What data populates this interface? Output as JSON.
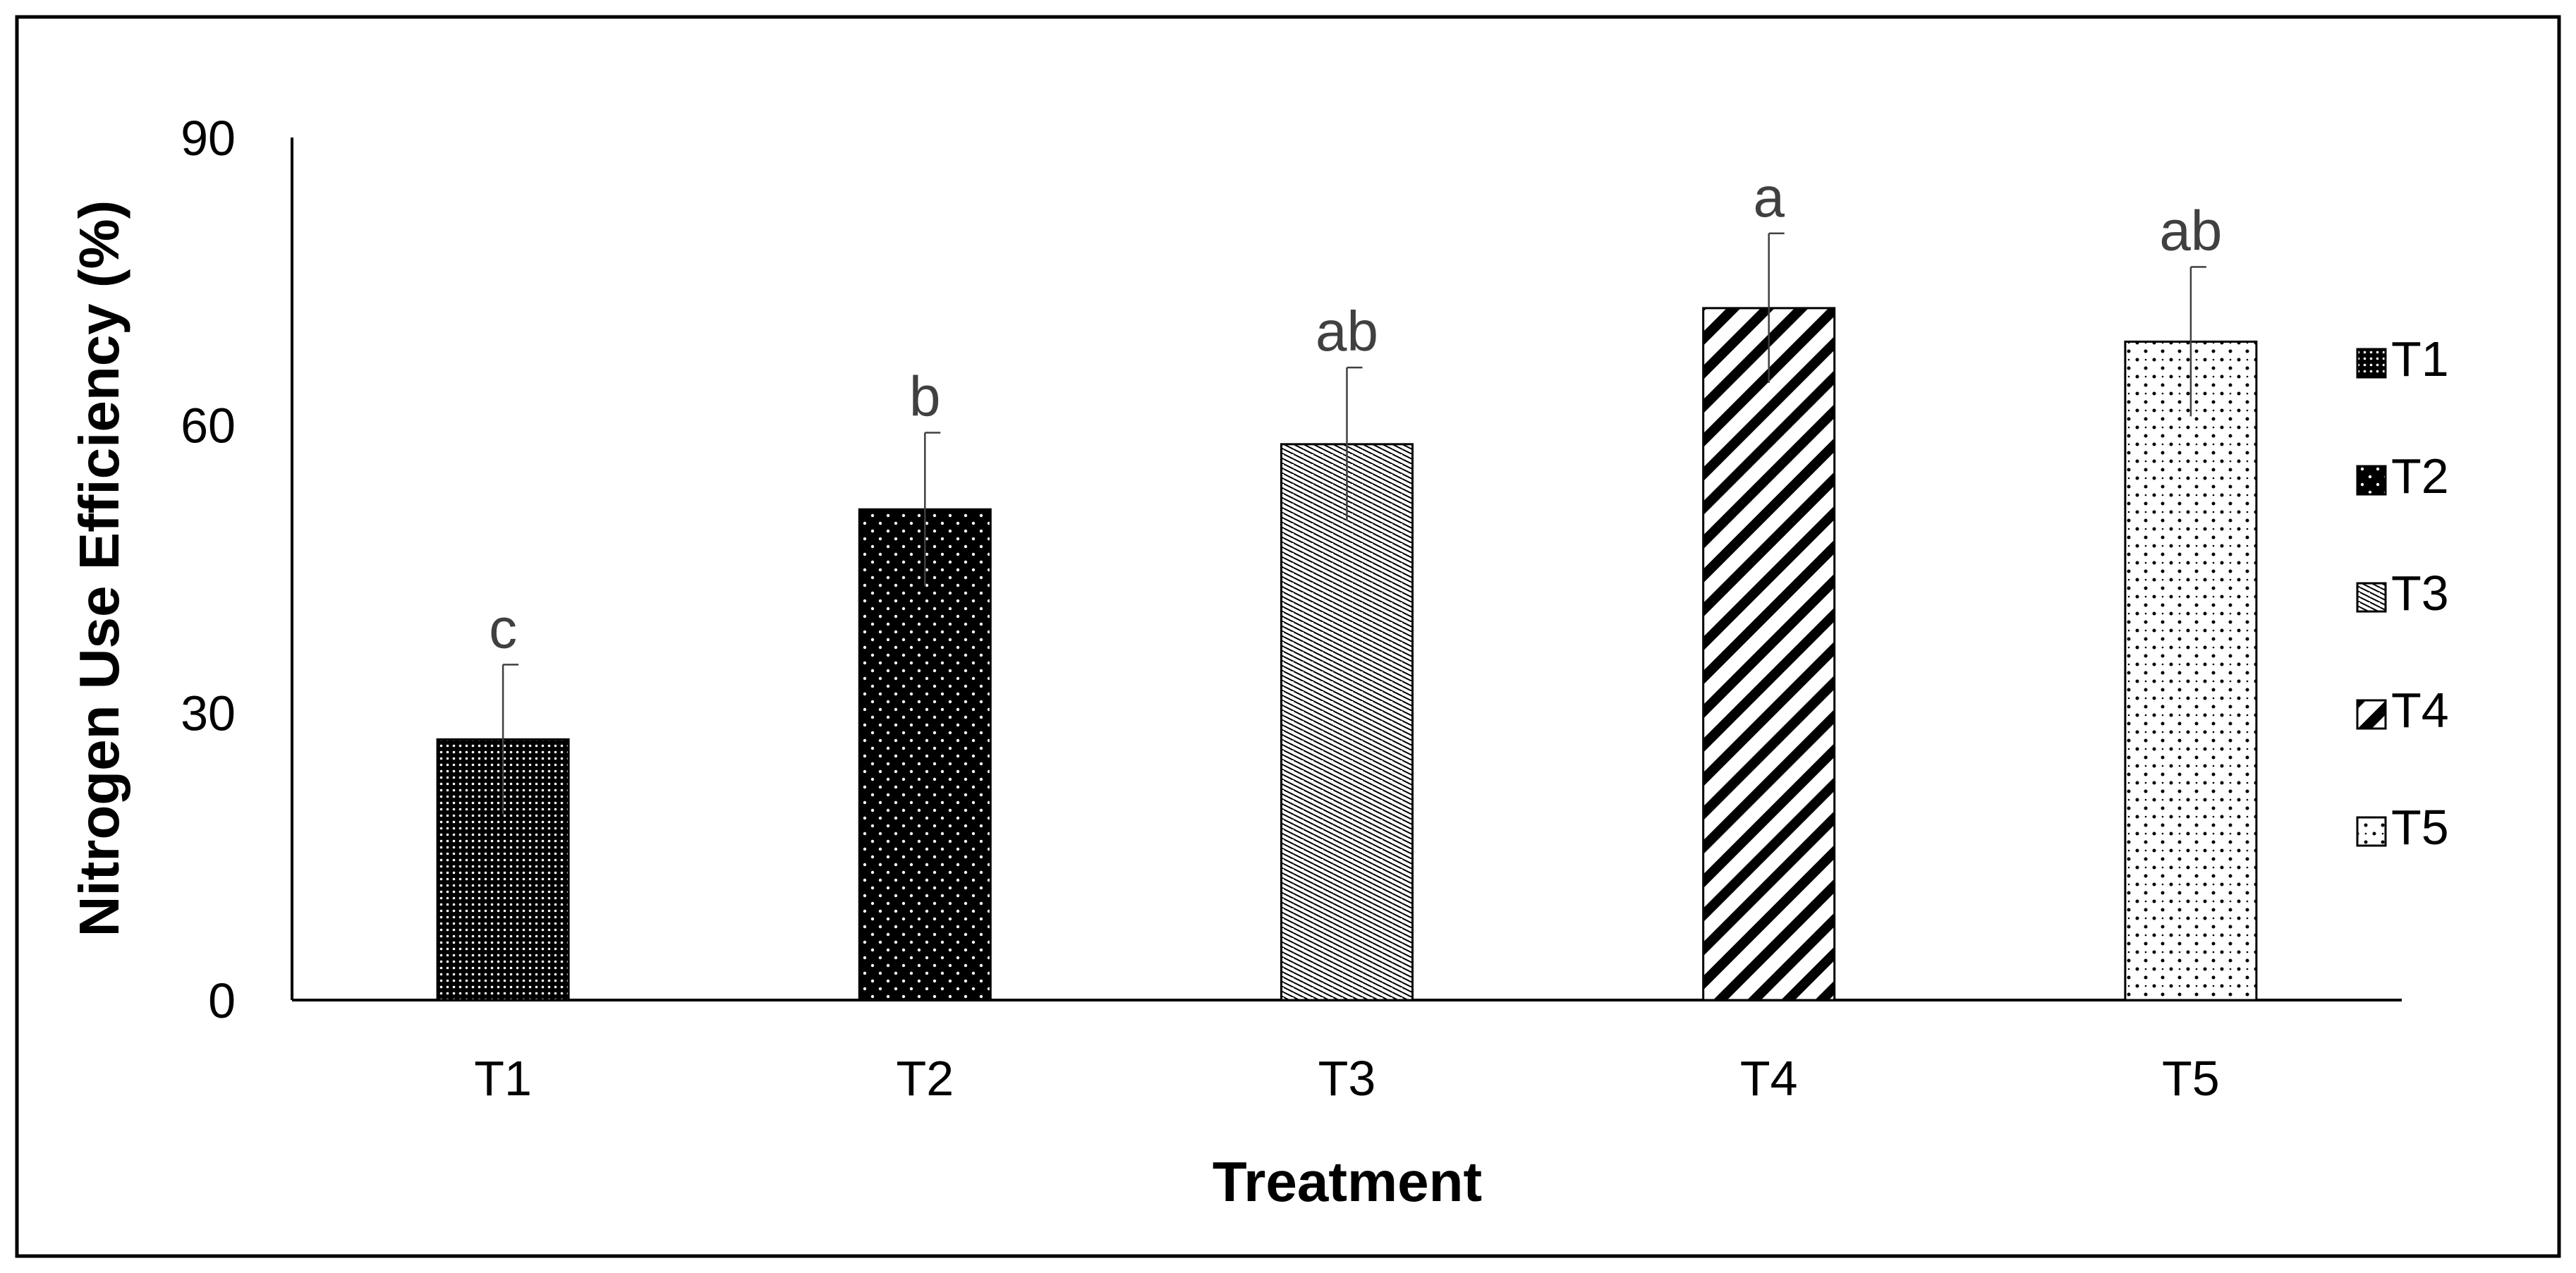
{
  "chart_data": {
    "type": "bar",
    "title": "",
    "xlabel": "Treatment",
    "ylabel": "Nitrogen Use Efficiency (%)",
    "ylim": [
      0,
      90
    ],
    "yticks": [
      0,
      30,
      60,
      90
    ],
    "categories": [
      "T1",
      "T2",
      "T3",
      "T4",
      "T5"
    ],
    "values": [
      27.2,
      51.2,
      58.0,
      72.2,
      68.7
    ],
    "errors": [
      7.8,
      8.0,
      8.0,
      7.8,
      7.8
    ],
    "significance": [
      "c",
      "b",
      "ab",
      "a",
      "ab"
    ],
    "legend": [
      "T1",
      "T2",
      "T3",
      "T4",
      "T5"
    ],
    "legend_position": "right",
    "patterns": [
      "dense-dots",
      "black-white-dots",
      "horizontal-hatch",
      "diagonal-stripes",
      "sparse-dots"
    ],
    "colors": {
      "ink": "#000000",
      "label": "#404040",
      "error_bar": "#404040",
      "background": "#ffffff"
    }
  }
}
